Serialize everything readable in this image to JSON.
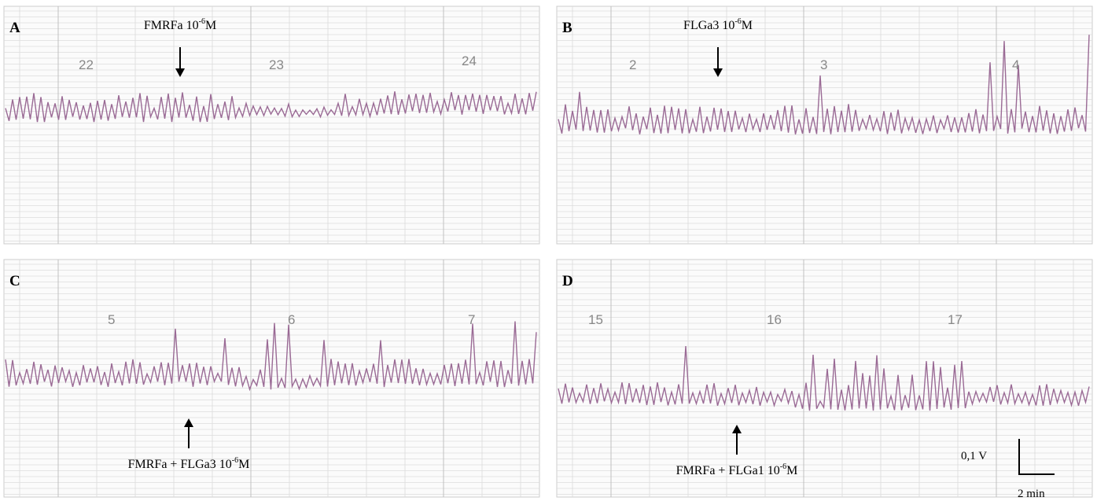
{
  "panels": [
    {
      "letter": "A",
      "annotation": {
        "text": "FMRFa 10",
        "sup": "-6",
        "unit": "M"
      },
      "paper_numbers": [
        "22",
        "23",
        "24"
      ]
    },
    {
      "letter": "B",
      "annotation": {
        "text": "FLGa3 10",
        "sup": "-6",
        "unit": "M"
      },
      "paper_numbers": [
        "2",
        "3",
        "4"
      ]
    },
    {
      "letter": "C",
      "annotation": {
        "text": "FMRFa + FLGa3 10",
        "sup": "-6",
        "unit": "M"
      },
      "paper_numbers": [
        "5",
        "6",
        "7"
      ]
    },
    {
      "letter": "D",
      "annotation": {
        "text": "FMRFa + FLGa1 10",
        "sup": "-6",
        "unit": "M"
      },
      "paper_numbers": [
        "15",
        "16",
        "17"
      ]
    }
  ],
  "scale_bar": {
    "vertical": "0,1 V",
    "horizontal": "2 min"
  }
}
